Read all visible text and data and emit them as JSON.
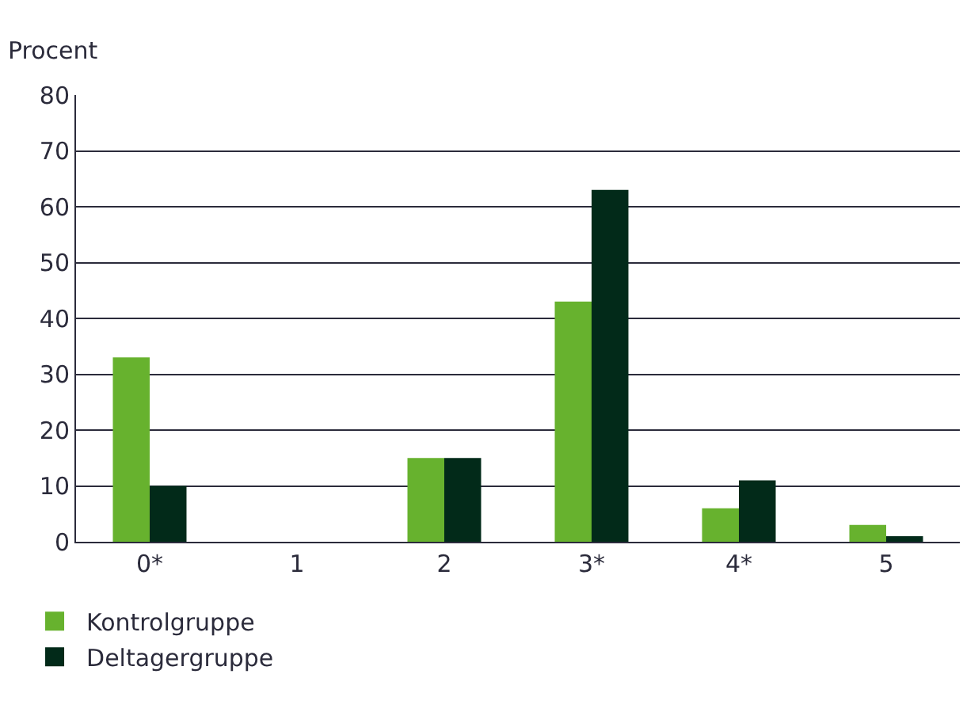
{
  "chart_data": {
    "type": "bar",
    "ylabel": "Procent",
    "categories": [
      "0*",
      "1",
      "2",
      "3*",
      "4*",
      "5"
    ],
    "series": [
      {
        "name": "Kontrolgruppe",
        "color": "#67b22e",
        "values": [
          33,
          0,
          15,
          43,
          6,
          3
        ]
      },
      {
        "name": "Deltagergruppe",
        "color": "#022a19",
        "values": [
          10,
          0,
          15,
          63,
          11,
          1
        ]
      }
    ],
    "ylim": [
      0,
      80
    ],
    "yticks": [
      0,
      10,
      20,
      30,
      40,
      50,
      60,
      70,
      80
    ],
    "grid": "y",
    "legend": "bottom left"
  }
}
